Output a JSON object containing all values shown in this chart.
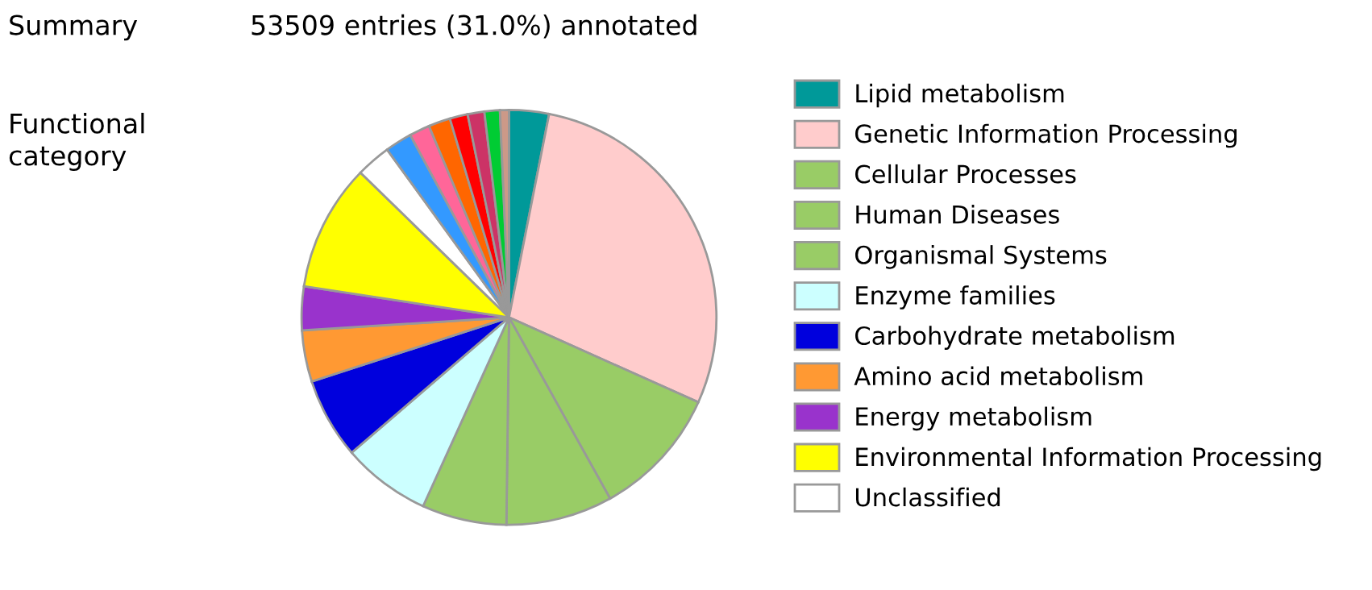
{
  "chart_data": {
    "type": "pie",
    "title": "Summary",
    "subtitle": "53509 entries (31.0%) annotated",
    "annotations": [
      "Functional\ncategory"
    ],
    "categories": [
      "Lipid metabolism",
      "Genetic Information Processing",
      "Cellular Processes",
      "Human Diseases",
      "Organismal Systems",
      "Enzyme families",
      "Carbohydrate metabolism",
      "Amino acid metabolism",
      "Energy metabolism",
      "Environmental Information Processing",
      "Unclassified",
      null,
      null,
      null,
      null,
      null,
      null,
      null
    ],
    "values": [
      3.1,
      28.6,
      10.2,
      8.3,
      6.6,
      6.9,
      6.3,
      4.0,
      3.4,
      9.9,
      2.7,
      2.1,
      1.6,
      1.7,
      1.4,
      1.3,
      1.2,
      0.7
    ],
    "colors": [
      "#009999",
      "#ffcccc",
      "#99cc66",
      "#99cc66",
      "#99cc66",
      "#ccffff",
      "#0000dd",
      "#ff9933",
      "#9933cc",
      "#ffff00",
      "#ffffff",
      "#3399ff",
      "#ff6699",
      "#ff6600",
      "#ff0000",
      "#cc3366",
      "#00cc33",
      "#cc9988"
    ],
    "legend": "right"
  }
}
